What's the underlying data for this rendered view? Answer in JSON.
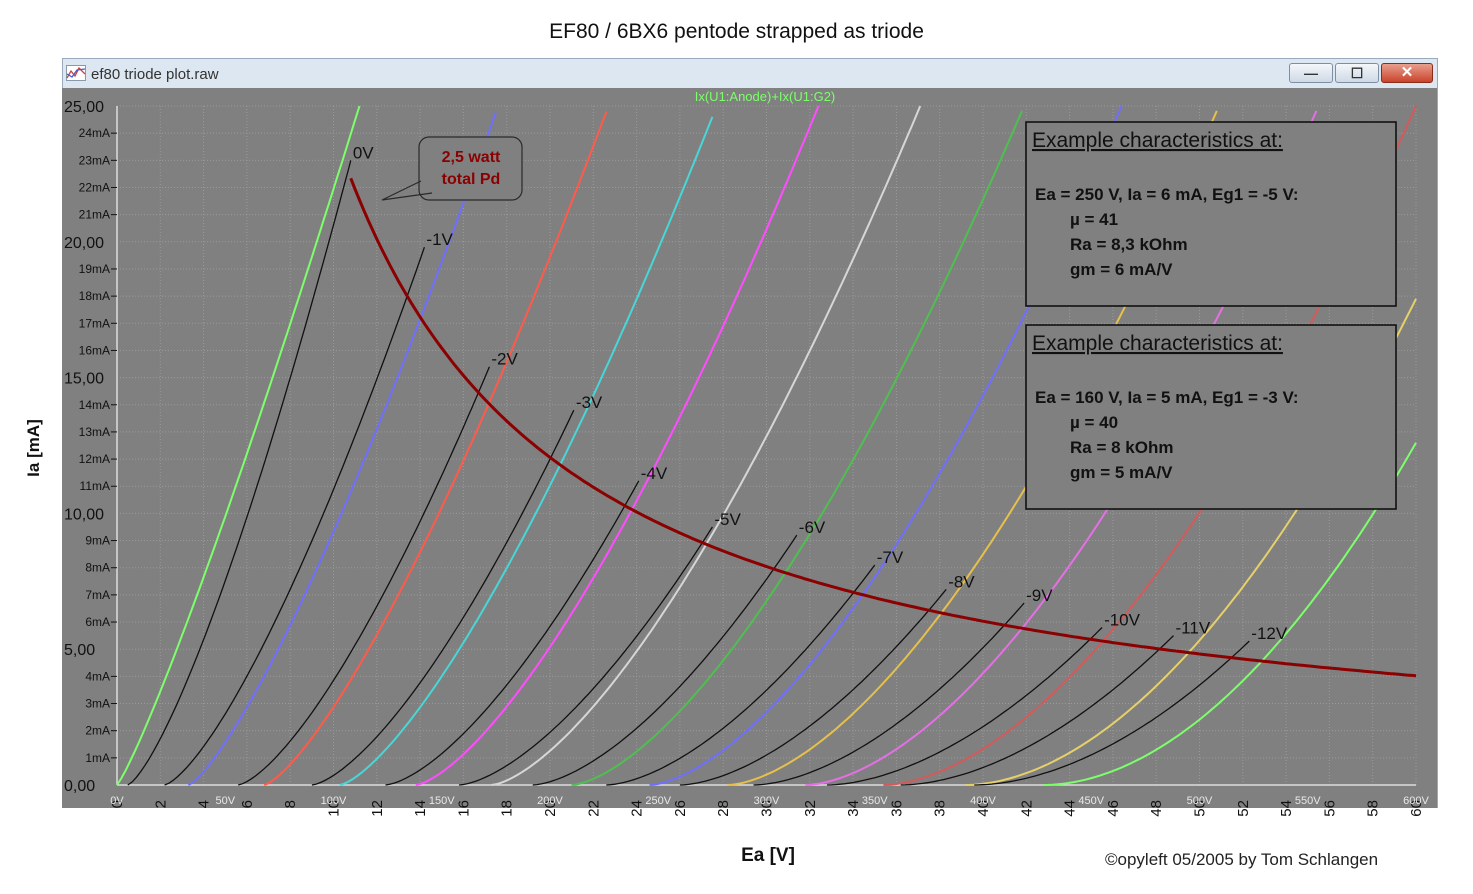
{
  "page": {
    "title": "EF80 / 6BX6 pentode strapped as triode",
    "credit": "©opyleft 05/2005 by Tom Schlangen"
  },
  "window": {
    "title": "ef80 triode plot.raw",
    "min_label": "—",
    "max_label": "☐",
    "close_label": "✕"
  },
  "colors": {
    "plot_background": "#808080",
    "power_curve": "#8b0000",
    "note_text": "#8b0000",
    "trace_label": "#7cff6b"
  },
  "chart_data": {
    "type": "line",
    "trace_label": "Ix(U1:Anode)+Ix(U1:G2)",
    "xlabel": "Ea [V]",
    "ylabel": "Ia [mA]",
    "xlim": [
      0,
      600
    ],
    "ylim": [
      0,
      25
    ],
    "grid": true,
    "x_ticks": [
      "0",
      "2",
      "4",
      "6",
      "8",
      "10",
      "12",
      "14",
      "16",
      "18",
      "20",
      "22",
      "24",
      "26",
      "28",
      "30",
      "32",
      "34",
      "36",
      "38",
      "40",
      "42",
      "44",
      "46",
      "48",
      "50",
      "52",
      "54",
      "56",
      "58",
      "60"
    ],
    "x_volt_ticks": [
      "0V",
      "50V",
      "100V",
      "150V",
      "200V",
      "250V",
      "300V",
      "350V",
      "400V",
      "450V",
      "500V",
      "550V",
      "600V"
    ],
    "y_ticks_ma": [
      "1mA",
      "2mA",
      "3mA",
      "4mA",
      "6mA",
      "7mA",
      "8mA",
      "9mA",
      "11mA",
      "12mA",
      "13mA",
      "14mA",
      "16mA",
      "17mA",
      "18mA",
      "19mA",
      "21mA",
      "22mA",
      "23mA",
      "24mA"
    ],
    "y_ticks_main": [
      "0,00",
      "5,00",
      "10,00",
      "15,00",
      "20,00",
      "25,00"
    ],
    "grid_curves": [
      {
        "label": "0V",
        "bias": 0,
        "x_end": 108,
        "y_end": 23.0
      },
      {
        "label": "-1V",
        "bias": -1,
        "x_end": 142,
        "y_end": 19.8
      },
      {
        "label": "-2V",
        "bias": -2,
        "x_end": 172,
        "y_end": 15.4
      },
      {
        "label": "-3V",
        "bias": -3,
        "x_end": 211,
        "y_end": 13.8
      },
      {
        "label": "-4V",
        "bias": -4,
        "x_end": 241,
        "y_end": 11.2
      },
      {
        "label": "-5V",
        "bias": -5,
        "x_end": 275,
        "y_end": 9.5
      },
      {
        "label": "-6V",
        "bias": -6,
        "x_end": 314,
        "y_end": 9.2
      },
      {
        "label": "-7V",
        "bias": -7,
        "x_end": 350,
        "y_end": 8.1
      },
      {
        "label": "-8V",
        "bias": -8,
        "x_end": 383,
        "y_end": 7.2
      },
      {
        "label": "-9V",
        "bias": -9,
        "x_end": 419,
        "y_end": 6.7
      },
      {
        "label": "-10V",
        "bias": -10,
        "x_end": 455,
        "y_end": 5.8
      },
      {
        "label": "-11V",
        "bias": -11,
        "x_end": 488,
        "y_end": 5.5
      },
      {
        "label": "-12V",
        "bias": -12,
        "x_end": 523,
        "y_end": 5.3
      }
    ],
    "color_curves": [
      {
        "color": "#7cff6b",
        "offset": 0,
        "slope_exp": 1.15,
        "x_end": 112
      },
      {
        "color": "#6f6fff",
        "offset": 33,
        "slope_exp": 1.3,
        "x_end": 176
      },
      {
        "color": "#ff5a4a",
        "offset": 68,
        "slope_exp": 1.35,
        "x_end": 227
      },
      {
        "color": "#48d6d6",
        "offset": 103,
        "slope_exp": 1.4,
        "x_end": 277
      },
      {
        "color": "#ff4cff",
        "offset": 138,
        "slope_exp": 1.45,
        "x_end": 324
      },
      {
        "color": "#d6d6d6",
        "offset": 173,
        "slope_exp": 1.5,
        "x_end": 371
      },
      {
        "color": "#4fbf4f",
        "offset": 210,
        "slope_exp": 1.55,
        "x_end": 419
      },
      {
        "color": "#6f6fff",
        "offset": 246,
        "slope_exp": 1.6,
        "x_end": 464
      },
      {
        "color": "#e5c04a",
        "offset": 282,
        "slope_exp": 1.65,
        "x_end": 509
      },
      {
        "color": "#e56fe5",
        "offset": 318,
        "slope_exp": 1.7,
        "x_end": 555
      },
      {
        "color": "#d45a5a",
        "offset": 354,
        "slope_exp": 1.75,
        "x_end": 600
      },
      {
        "color": "#e5d06a",
        "offset": 392,
        "slope_exp": 1.85,
        "x_end": 600
      },
      {
        "color": "#7cff6b",
        "offset": 428,
        "slope_exp": 1.9,
        "x_end": 600
      }
    ],
    "power_curve": {
      "label_lines": [
        "2,5 watt",
        "total Pd"
      ],
      "watts": 2.5,
      "x_start": 108,
      "x_end": 600
    },
    "annotations": [
      {
        "heading": "Example characteristics at:",
        "lines": [
          "Ea = 250 V, Ia = 6 mA, Eg1 = -5 V:",
          "µ   = 41",
          "Ra  = 8,3 kOhm",
          "gm = 6 mA/V"
        ]
      },
      {
        "heading": "Example characteristics at:",
        "lines": [
          "Ea = 160 V, Ia = 5 mA, Eg1 = -3 V:",
          "µ   = 40",
          "Ra  = 8 kOhm",
          "gm = 5 mA/V"
        ]
      }
    ]
  }
}
